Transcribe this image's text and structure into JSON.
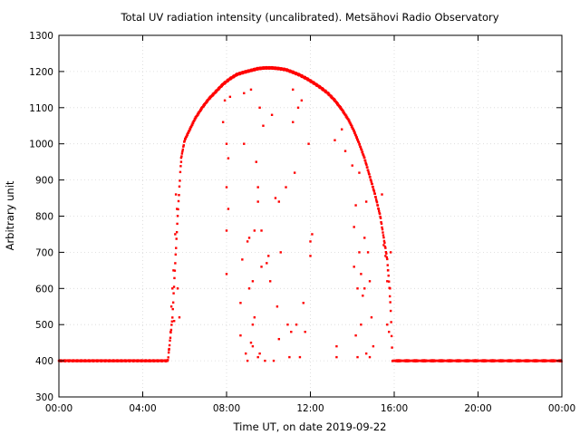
{
  "chart_data": {
    "type": "scatter",
    "title": "Total UV radiation intensity (uncalibrated). Metsähovi Radio Observatory",
    "xlabel": "Time UT, on date 2019-09-22",
    "ylabel": "Arbitrary unit",
    "xlim": [
      "00:00",
      "24:00"
    ],
    "ylim": [
      300,
      1300
    ],
    "x_tick_labels": [
      "00:00",
      "04:00",
      "08:00",
      "12:00",
      "16:00",
      "20:00",
      "00:00"
    ],
    "y_tick_labels": [
      "300",
      "400",
      "500",
      "600",
      "700",
      "800",
      "900",
      "1000",
      "1100",
      "1200",
      "1300"
    ],
    "grid": true,
    "marker_color": "#ff0000",
    "baseline_value": 400,
    "envelope": [
      [
        "05:12",
        400
      ],
      [
        "05:25",
        520
      ],
      [
        "05:40",
        800
      ],
      [
        "05:50",
        960
      ],
      [
        "06:00",
        1010
      ],
      [
        "06:15",
        1040
      ],
      [
        "06:30",
        1070
      ],
      [
        "06:50",
        1100
      ],
      [
        "07:10",
        1125
      ],
      [
        "07:30",
        1145
      ],
      [
        "07:50",
        1165
      ],
      [
        "08:10",
        1180
      ],
      [
        "08:30",
        1192
      ],
      [
        "08:50",
        1198
      ],
      [
        "09:10",
        1203
      ],
      [
        "09:30",
        1208
      ],
      [
        "09:50",
        1210
      ],
      [
        "10:10",
        1210
      ],
      [
        "10:30",
        1208
      ],
      [
        "10:50",
        1205
      ],
      [
        "11:10",
        1198
      ],
      [
        "11:30",
        1190
      ],
      [
        "11:50",
        1180
      ],
      [
        "12:10",
        1168
      ],
      [
        "12:30",
        1155
      ],
      [
        "12:50",
        1140
      ],
      [
        "13:10",
        1120
      ],
      [
        "13:30",
        1095
      ],
      [
        "13:50",
        1065
      ],
      [
        "14:05",
        1035
      ],
      [
        "14:20",
        1000
      ],
      [
        "14:35",
        960
      ],
      [
        "14:50",
        910
      ],
      [
        "15:05",
        860
      ],
      [
        "15:20",
        800
      ],
      [
        "15:30",
        740
      ],
      [
        "15:40",
        680
      ],
      [
        "15:45",
        620
      ],
      [
        "15:50",
        540
      ],
      [
        "15:55",
        400
      ]
    ],
    "scatter_points": [
      [
        "05:15",
        430
      ],
      [
        "05:20",
        480
      ],
      [
        "05:22",
        550
      ],
      [
        "05:25",
        600
      ],
      [
        "05:28",
        650
      ],
      [
        "05:30",
        510
      ],
      [
        "05:33",
        750
      ],
      [
        "05:35",
        860
      ],
      [
        "05:38",
        820
      ],
      [
        "05:40",
        600
      ],
      [
        "05:45",
        520
      ],
      [
        "05:50",
        950
      ],
      [
        "07:50",
        1060
      ],
      [
        "07:55",
        1120
      ],
      [
        "08:00",
        1000
      ],
      [
        "08:00",
        880
      ],
      [
        "08:00",
        760
      ],
      [
        "08:00",
        640
      ],
      [
        "08:05",
        820
      ],
      [
        "08:05",
        960
      ],
      [
        "08:10",
        1130
      ],
      [
        "08:40",
        560
      ],
      [
        "08:40",
        470
      ],
      [
        "08:45",
        680
      ],
      [
        "08:50",
        1140
      ],
      [
        "08:50",
        1000
      ],
      [
        "08:55",
        420
      ],
      [
        "09:00",
        400
      ],
      [
        "09:00",
        730
      ],
      [
        "09:05",
        740
      ],
      [
        "09:05",
        600
      ],
      [
        "09:10",
        1150
      ],
      [
        "09:10",
        450
      ],
      [
        "09:15",
        620
      ],
      [
        "09:15",
        440
      ],
      [
        "09:15",
        500
      ],
      [
        "09:20",
        520
      ],
      [
        "09:20",
        760
      ],
      [
        "09:25",
        950
      ],
      [
        "09:30",
        880
      ],
      [
        "09:30",
        840
      ],
      [
        "09:30",
        410
      ],
      [
        "09:35",
        1100
      ],
      [
        "09:35",
        420
      ],
      [
        "09:40",
        760
      ],
      [
        "09:40",
        660
      ],
      [
        "09:45",
        1050
      ],
      [
        "09:50",
        400
      ],
      [
        "09:55",
        670
      ],
      [
        "10:00",
        690
      ],
      [
        "10:05",
        620
      ],
      [
        "10:10",
        1080
      ],
      [
        "10:15",
        400
      ],
      [
        "10:20",
        850
      ],
      [
        "10:25",
        550
      ],
      [
        "10:30",
        460
      ],
      [
        "10:30",
        840
      ],
      [
        "10:35",
        700
      ],
      [
        "10:50",
        880
      ],
      [
        "10:55",
        500
      ],
      [
        "11:00",
        410
      ],
      [
        "11:05",
        480
      ],
      [
        "11:10",
        1060
      ],
      [
        "11:10",
        1150
      ],
      [
        "11:15",
        920
      ],
      [
        "11:20",
        500
      ],
      [
        "11:25",
        1100
      ],
      [
        "11:30",
        410
      ],
      [
        "11:35",
        1120
      ],
      [
        "11:40",
        560
      ],
      [
        "11:45",
        480
      ],
      [
        "11:55",
        1000
      ],
      [
        "12:00",
        690
      ],
      [
        "12:00",
        730
      ],
      [
        "12:05",
        750
      ],
      [
        "13:10",
        1010
      ],
      [
        "13:15",
        440
      ],
      [
        "13:15",
        410
      ],
      [
        "13:30",
        1040
      ],
      [
        "13:40",
        980
      ],
      [
        "14:00",
        940
      ],
      [
        "14:05",
        770
      ],
      [
        "14:05",
        660
      ],
      [
        "14:10",
        830
      ],
      [
        "14:10",
        470
      ],
      [
        "14:15",
        410
      ],
      [
        "14:15",
        600
      ],
      [
        "14:20",
        920
      ],
      [
        "14:20",
        700
      ],
      [
        "14:25",
        640
      ],
      [
        "14:25",
        500
      ],
      [
        "14:30",
        580
      ],
      [
        "14:35",
        740
      ],
      [
        "14:35",
        600
      ],
      [
        "14:40",
        840
      ],
      [
        "14:40",
        420
      ],
      [
        "14:45",
        700
      ],
      [
        "14:50",
        620
      ],
      [
        "14:50",
        410
      ],
      [
        "14:55",
        520
      ],
      [
        "15:00",
        440
      ],
      [
        "15:25",
        860
      ],
      [
        "15:30",
        720
      ],
      [
        "15:35",
        690
      ],
      [
        "15:40",
        620
      ],
      [
        "15:40",
        500
      ],
      [
        "15:42",
        650
      ],
      [
        "15:45",
        480
      ],
      [
        "15:48",
        600
      ],
      [
        "15:50",
        700
      ]
    ],
    "wrapper_note": ""
  }
}
